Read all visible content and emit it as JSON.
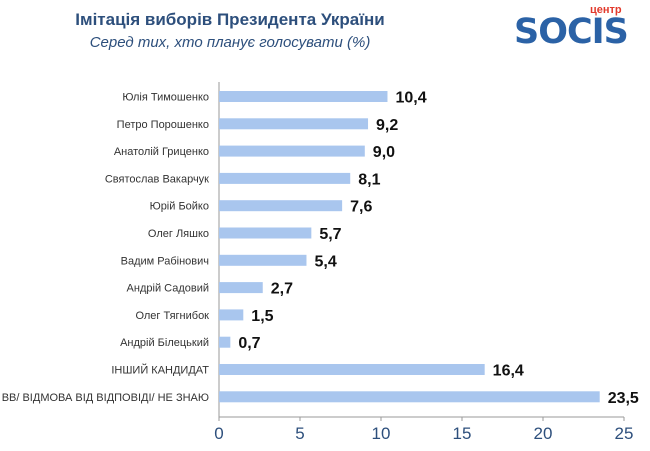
{
  "header": {
    "title": "Імітація виборів Президента України",
    "subtitle": "Серед тих, хто планує голосувати (%)"
  },
  "logo": {
    "word": "SOCIS",
    "sub": "центр",
    "color": "#2b62a6",
    "accent": "#e23a2c"
  },
  "chart_data": {
    "type": "bar",
    "orientation": "horizontal",
    "title": "Імітація виборів Президента України",
    "subtitle": "Серед тих, хто планує голосувати (%)",
    "categories": [
      "Юлія Тимошенко",
      "Петро Порошенко",
      "Анатолій Гриценко",
      "Святослав Вакарчук",
      "Юрій Бойко",
      "Олег Ляшко",
      "Вадим Рабінович",
      "Андрій Садовий",
      "Олег Тягнибок",
      "Андрій Білецький",
      "ІНШИЙ КАНДИДАТ",
      "ВВ/ ВІДМОВА ВІД ВІДПОВІДІ/ НЕ ЗНАЮ"
    ],
    "values": [
      10.4,
      9.2,
      9.0,
      8.1,
      7.6,
      5.7,
      5.4,
      2.7,
      1.5,
      0.7,
      16.4,
      23.5
    ],
    "value_labels": [
      "10,4",
      "9,2",
      "9,0",
      "8,1",
      "7,6",
      "5,7",
      "5,4",
      "2,7",
      "1,5",
      "0,7",
      "16,4",
      "23,5"
    ],
    "xlim": [
      0,
      25
    ],
    "xticks": [
      0,
      5,
      10,
      15,
      20,
      25
    ],
    "bar_color": "#a9c6ee",
    "grid": false,
    "legend": "none"
  }
}
